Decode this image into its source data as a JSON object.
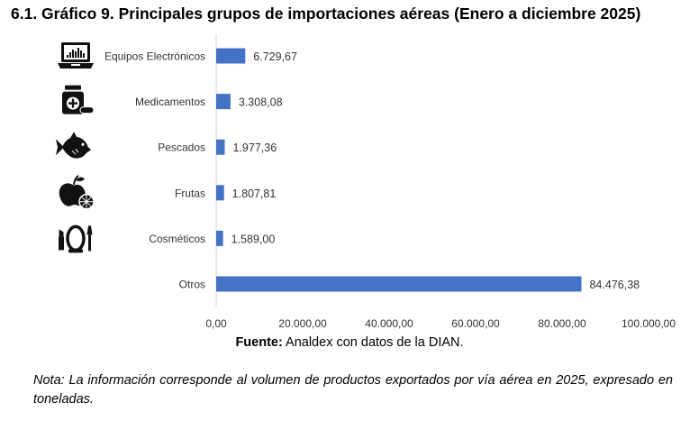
{
  "title": "6.1. Gráfico 9. Principales grupos de importaciones aéreas (Enero a diciembre 2025)",
  "colors": {
    "bar": "#4472C4",
    "icon": "#111111",
    "axis": "#d0d0d0"
  },
  "chart_data": {
    "type": "bar",
    "orientation": "horizontal",
    "categories": [
      "Equipos Electrónicos",
      "Medicamentos",
      "Pescados",
      "Frutas",
      "Cosméticos",
      "Otros"
    ],
    "values": [
      6729.67,
      3308.08,
      1977.36,
      1807.81,
      1589.0,
      84476.38
    ],
    "value_labels": [
      "6.729,67",
      "3.308,08",
      "1.977,36",
      "1.807,81",
      "1.589,00",
      "84.476,38"
    ],
    "xlim": [
      0,
      100000
    ],
    "x_ticks": [
      0,
      20000,
      40000,
      60000,
      80000,
      100000
    ],
    "x_tick_labels": [
      "0,00",
      "20.000,00",
      "40.000,00",
      "60.000,00",
      "80.000,00",
      "100.000,00"
    ],
    "icons": [
      "laptop-icon",
      "medicine-icon",
      "fish-icon",
      "apple-icon",
      "cosmetics-icon",
      ""
    ],
    "grid": false
  },
  "source": {
    "label": "Fuente:",
    "text": " Analdex con datos de la DIAN."
  },
  "note": "Nota: La información corresponde al volumen de productos exportados por vía aérea en 2025, expresado en toneladas."
}
